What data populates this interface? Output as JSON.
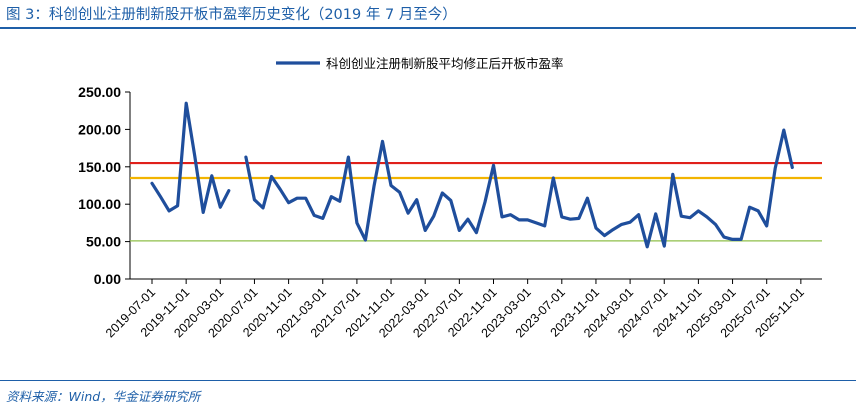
{
  "figure": {
    "title": "图 3：科创创业注册制新股开板市盈率历史变化（2019 年 7 月至今）",
    "source": "资料来源：Wind，华金证券研究所"
  },
  "colors": {
    "title_blue": "#1e5fa8",
    "series": "#1f4e9c",
    "ref_red": "#e0201a",
    "ref_yellow": "#f2b400",
    "ref_green": "#8fbf4a"
  },
  "chart_data": {
    "type": "line",
    "title": "",
    "xlabel": "",
    "ylabel": "",
    "ylim": [
      0,
      250
    ],
    "yticks": [
      "0.00",
      "50.00",
      "100.00",
      "150.00",
      "200.00",
      "250.00"
    ],
    "grid": false,
    "legend_position": "top-center",
    "x_tick_labels": [
      "2019-07-01",
      "2019-11-01",
      "2020-03-01",
      "2020-07-01",
      "2020-11-01",
      "2021-03-01",
      "2021-07-01",
      "2021-11-01",
      "2022-03-01",
      "2022-07-01",
      "2022-11-01",
      "2023-03-01",
      "2023-07-01",
      "2023-11-01",
      "2024-03-01",
      "2024-07-01",
      "2024-11-01",
      "2025-03-01",
      "2025-07-01",
      "2025-11-01"
    ],
    "series": [
      {
        "name": "科创创业注册制新股平均修正后开板市盈率",
        "segments": [
          {
            "x": [
              "2019-07",
              "2019-08",
              "2019-09",
              "2019-10",
              "2019-11",
              "2019-12",
              "2020-01",
              "2020-02",
              "2020-03",
              "2020-04"
            ],
            "y": [
              128,
              110,
              91,
              98,
              235,
              165,
              89,
              138,
              96,
              118
            ]
          },
          {
            "x": [
              "2020-06",
              "2020-07",
              "2020-08",
              "2020-09",
              "2020-10",
              "2020-11",
              "2020-12",
              "2021-01",
              "2021-02",
              "2021-03",
              "2021-04",
              "2021-05",
              "2021-06",
              "2021-07",
              "2021-08",
              "2021-09",
              "2021-10",
              "2021-11",
              "2021-12",
              "2022-01",
              "2022-02",
              "2022-03",
              "2022-04",
              "2022-05",
              "2022-06",
              "2022-07",
              "2022-08",
              "2022-09",
              "2022-10",
              "2022-11",
              "2022-12",
              "2023-01",
              "2023-02",
              "2023-03",
              "2023-04",
              "2023-05",
              "2023-06",
              "2023-07",
              "2023-08",
              "2023-09",
              "2023-10",
              "2023-11",
              "2023-12",
              "2024-01",
              "2024-02",
              "2024-03",
              "2024-04",
              "2024-05",
              "2024-06",
              "2024-07",
              "2024-08",
              "2024-09",
              "2024-10",
              "2024-11",
              "2024-12",
              "2025-01",
              "2025-02",
              "2025-03",
              "2025-04",
              "2025-05",
              "2025-06",
              "2025-07",
              "2025-08",
              "2025-09",
              "2025-10",
              "2025-11"
            ],
            "y": [
              163,
              106,
              95,
              137,
              120,
              102,
              108,
              108,
              85,
              81,
              110,
              104,
              163,
              75,
              52,
              124,
              184,
              125,
              116,
              88,
              106,
              65,
              84,
              115,
              105,
              65,
              80,
              62,
              103,
              152,
              83,
              86,
              79,
              79,
              75,
              71,
              135,
              83,
              80,
              81,
              108,
              68,
              58,
              66,
              73,
              76,
              86,
              43,
              87,
              44,
              140,
              84,
              82,
              91,
              83,
              73,
              56,
              53,
              53,
              96,
              91,
              71,
              148,
              199,
              149,
              null
            ]
          }
        ]
      }
    ],
    "reference_lines": [
      {
        "y": 155,
        "color": "red"
      },
      {
        "y": 135,
        "color": "yellow"
      },
      {
        "y": 51,
        "color": "green"
      }
    ]
  }
}
